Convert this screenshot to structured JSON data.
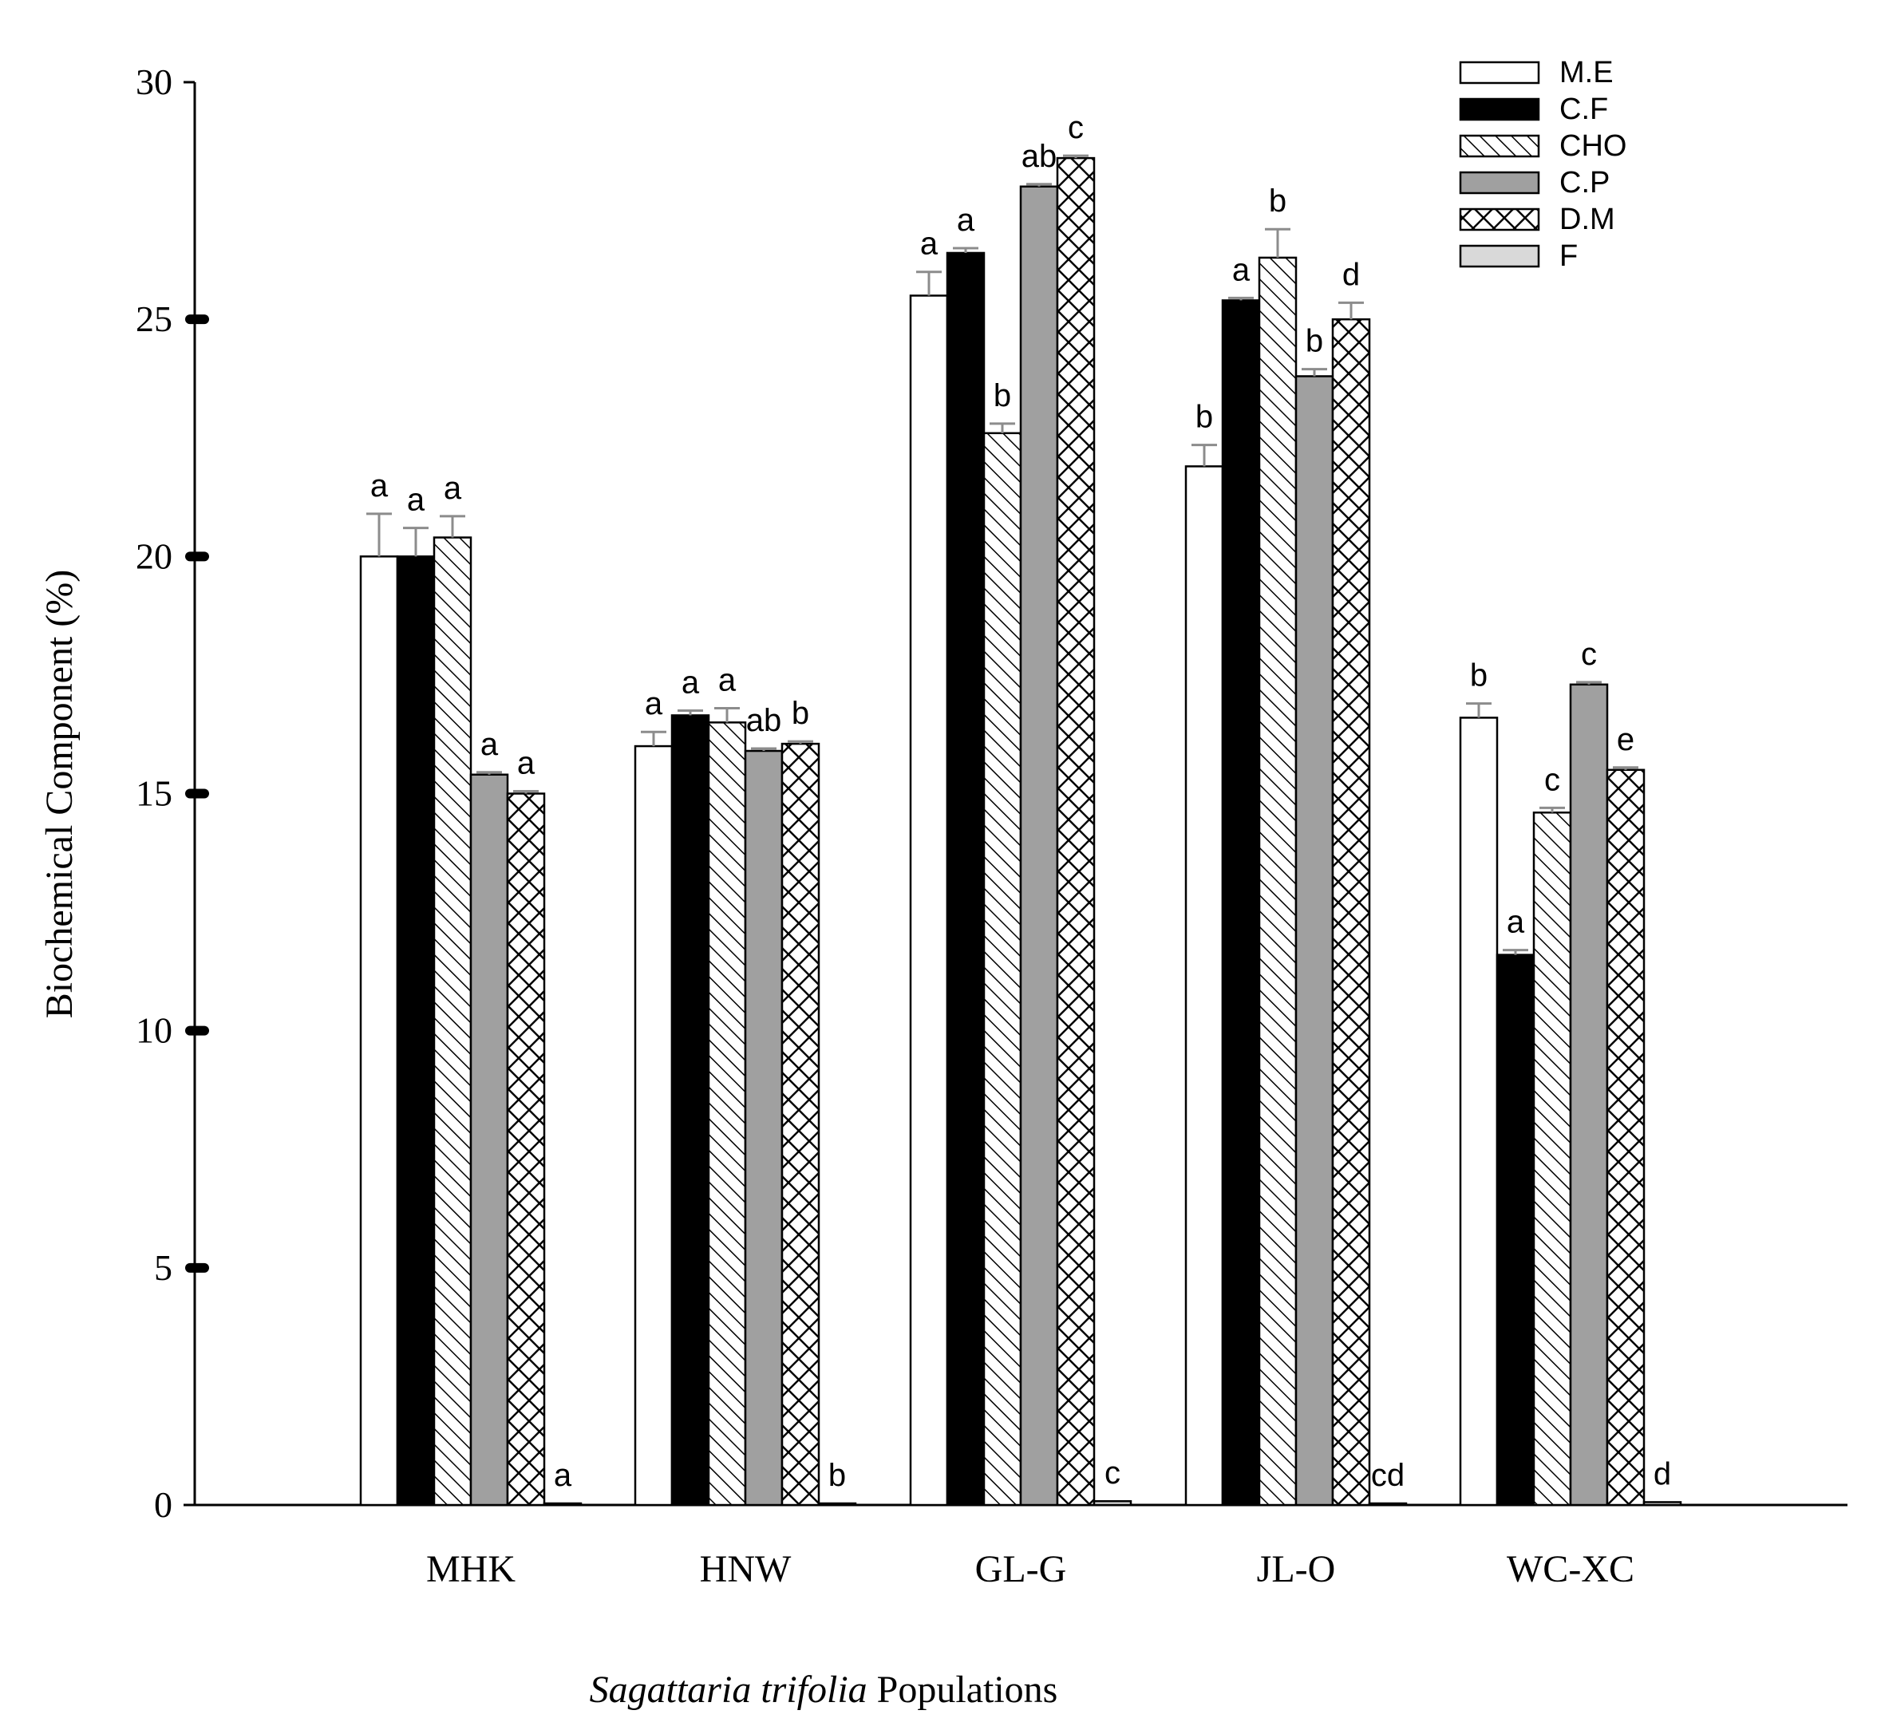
{
  "chart_data": {
    "type": "bar",
    "ylabel": "Biochemical Component (%)",
    "xlabel_italic": "Sagattaria trifolia",
    "xlabel_rest": " Populations",
    "ylim": [
      0,
      30
    ],
    "yticks": [
      0,
      5,
      10,
      15,
      20,
      25,
      30
    ],
    "categories": [
      "MHK",
      "HNW",
      "GL-G",
      "JL-O",
      "WC-XC"
    ],
    "legend_position": "top-right",
    "series": [
      {
        "name": "M.E",
        "pattern": "white",
        "values": [
          20.0,
          16.0,
          25.5,
          21.9,
          16.6
        ],
        "errors": [
          0.9,
          0.3,
          0.5,
          0.45,
          0.3
        ],
        "letters": [
          "a",
          "a",
          "a",
          "b",
          "b"
        ]
      },
      {
        "name": "C.F",
        "pattern": "black",
        "values": [
          20.0,
          16.65,
          26.4,
          25.4,
          11.6
        ],
        "errors": [
          0.6,
          0.1,
          0.1,
          0.05,
          0.1
        ],
        "letters": [
          "a",
          "a",
          "a",
          "a",
          "a"
        ]
      },
      {
        "name": "CHO",
        "pattern": "diagonal",
        "values": [
          20.4,
          16.5,
          22.6,
          26.3,
          14.6
        ],
        "errors": [
          0.45,
          0.3,
          0.2,
          0.6,
          0.1
        ],
        "letters": [
          "a",
          "a",
          "b",
          "b",
          "c"
        ]
      },
      {
        "name": "C.P",
        "pattern": "gray",
        "values": [
          15.4,
          15.9,
          27.8,
          23.8,
          17.3
        ],
        "errors": [
          0.05,
          0.05,
          0.05,
          0.15,
          0.05
        ],
        "letters": [
          "a",
          "ab",
          "ab",
          "b",
          "c"
        ]
      },
      {
        "name": "D.M",
        "pattern": "crosshatch",
        "values": [
          15.0,
          16.05,
          28.4,
          25.0,
          15.5
        ],
        "errors": [
          0.05,
          0.05,
          0.05,
          0.35,
          0.05
        ],
        "letters": [
          "a",
          "b",
          "c",
          "d",
          "e"
        ]
      },
      {
        "name": "F",
        "pattern": "lightgray",
        "values": [
          0.02,
          0.02,
          0.08,
          0.02,
          0.06
        ],
        "errors": [
          0.0,
          0.0,
          0.0,
          0.0,
          0.0
        ],
        "letters": [
          "a",
          "b",
          "c",
          "cd",
          "d"
        ]
      }
    ]
  }
}
